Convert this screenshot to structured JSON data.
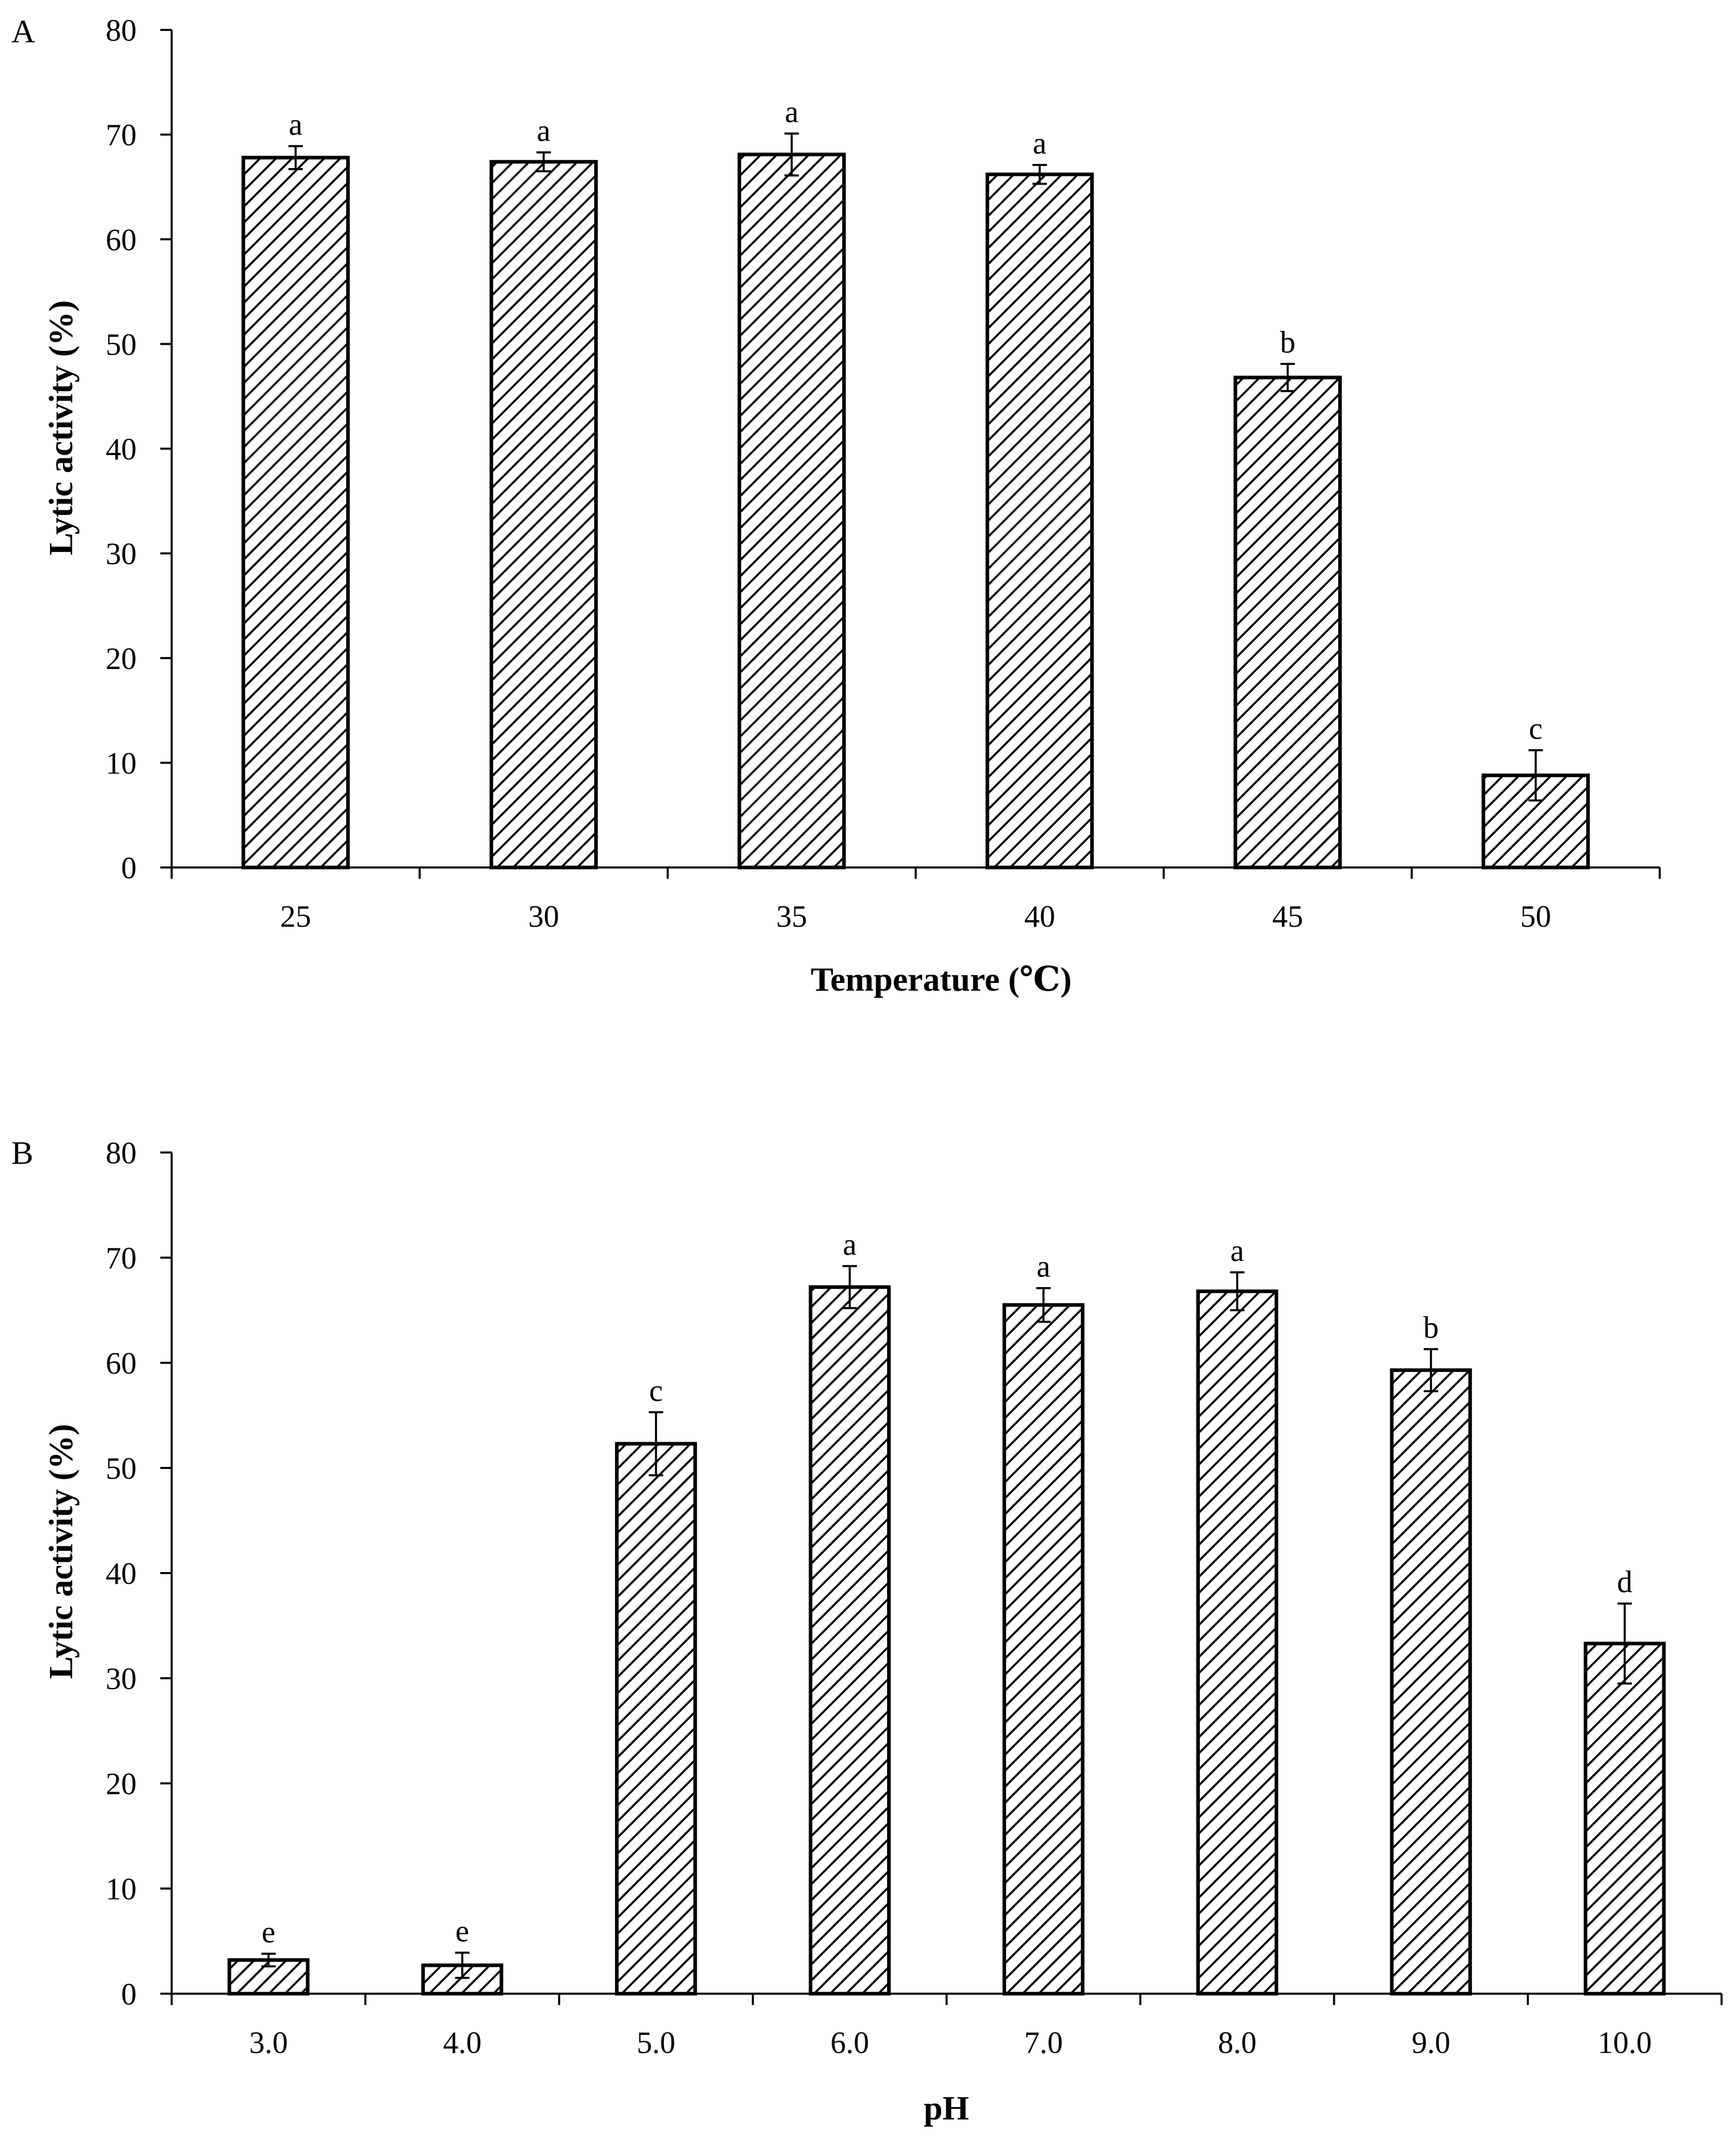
{
  "chart_data": [
    {
      "type": "bar",
      "panel_label": "A",
      "title": "",
      "xlabel": "Temperature (℃)",
      "ylabel": "Lytic activity (%)",
      "ylim": [
        0,
        80
      ],
      "yticks": [
        "0",
        "10",
        "20",
        "30",
        "40",
        "50",
        "60",
        "70",
        "80"
      ],
      "categories": [
        "25",
        "30",
        "35",
        "40",
        "45",
        "50"
      ],
      "values": [
        67.8,
        67.4,
        68.1,
        66.2,
        46.8,
        8.8
      ],
      "errors": [
        1.1,
        0.9,
        2.0,
        0.9,
        1.3,
        2.4
      ],
      "letters": [
        "a",
        "a",
        "a",
        "a",
        "b",
        "c"
      ],
      "pattern": "diagonal-hatch",
      "grid": false
    },
    {
      "type": "bar",
      "panel_label": "B",
      "title": "",
      "xlabel": "pH",
      "ylabel": "Lytic activity (%)",
      "ylim": [
        0,
        80
      ],
      "yticks": [
        "0",
        "10",
        "20",
        "30",
        "40",
        "50",
        "60",
        "70",
        "80"
      ],
      "categories": [
        "3.0",
        "4.0",
        "5.0",
        "6.0",
        "7.0",
        "8.0",
        "9.0",
        "10.0"
      ],
      "values": [
        3.2,
        2.7,
        52.3,
        67.2,
        65.5,
        66.8,
        59.3,
        33.3
      ],
      "errors": [
        0.6,
        1.2,
        3.0,
        2.0,
        1.6,
        1.8,
        2.0,
        3.8
      ],
      "letters": [
        "e",
        "e",
        "c",
        "a",
        "a",
        "a",
        "b",
        "d"
      ],
      "pattern": "diagonal-hatch",
      "grid": false
    }
  ]
}
